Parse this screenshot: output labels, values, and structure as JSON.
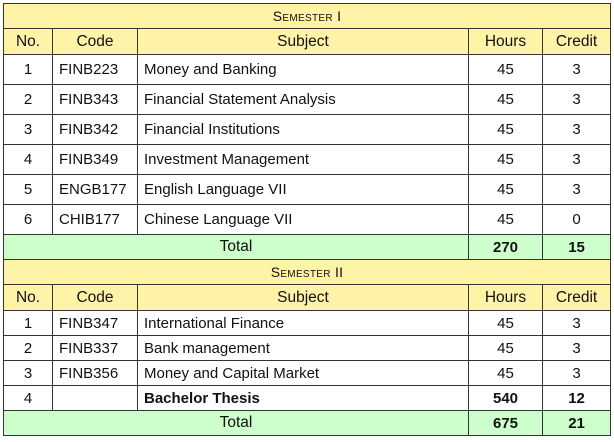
{
  "headers": {
    "no": "No.",
    "code": "Code",
    "subject": "Subject",
    "hours": "Hours",
    "credit": "Credit"
  },
  "semesters": [
    {
      "title": "Semester I",
      "rows": [
        {
          "no": "1",
          "code": "FINB223",
          "subject": "Money and Banking",
          "hours": "45",
          "credit": "3"
        },
        {
          "no": "2",
          "code": "FINB343",
          "subject": "Financial Statement Analysis",
          "hours": "45",
          "credit": "3"
        },
        {
          "no": "3",
          "code": "FINB342",
          "subject": "Financial Institutions",
          "hours": "45",
          "credit": "3"
        },
        {
          "no": "4",
          "code": "FINB349",
          "subject": "Investment Management",
          "hours": "45",
          "credit": "3"
        },
        {
          "no": "5",
          "code": "ENGB177",
          "subject": "English Language VII",
          "hours": "45",
          "credit": "3"
        },
        {
          "no": "6",
          "code": "CHIB177",
          "subject": "Chinese Language VII",
          "hours": "45",
          "credit": "0"
        }
      ],
      "total": {
        "label": "Total",
        "hours": "270",
        "credit": "15"
      }
    },
    {
      "title": "Semester II",
      "rows": [
        {
          "no": "1",
          "code": "FINB347",
          "subject": "International Finance",
          "hours": "45",
          "credit": "3"
        },
        {
          "no": "2",
          "code": "FINB337",
          "subject": "Bank management",
          "hours": "45",
          "credit": "3"
        },
        {
          "no": "3",
          "code": "FINB356",
          "subject": "Money and Capital Market",
          "hours": "45",
          "credit": "3"
        },
        {
          "no": "4",
          "code": "",
          "subject": "Bachelor Thesis",
          "hours": "540",
          "credit": "12",
          "bold": true
        }
      ],
      "total": {
        "label": "Total",
        "hours": "675",
        "credit": "21"
      }
    }
  ]
}
